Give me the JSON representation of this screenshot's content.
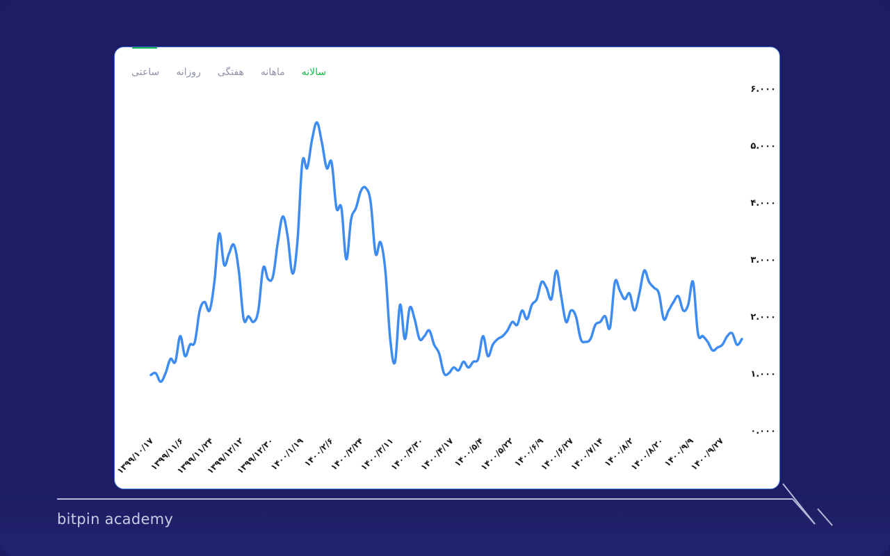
{
  "branding": {
    "name": "bitpin academy"
  },
  "tabs": [
    {
      "label": "سالانه",
      "active": true
    },
    {
      "label": "ماهانه",
      "active": false
    },
    {
      "label": "هفتگی",
      "active": false
    },
    {
      "label": "روزانه",
      "active": false
    },
    {
      "label": "ساعتی",
      "active": false
    }
  ],
  "colors": {
    "line": "#3f8cf0",
    "accent": "#16b94a",
    "background": "#1b1c63"
  },
  "chart_data": {
    "type": "line",
    "title": "",
    "xlabel": "",
    "ylabel": "",
    "ylim": [
      0,
      6
    ],
    "y_ticks": [
      {
        "value": 0,
        "label": "۰.۰۰۰"
      },
      {
        "value": 1,
        "label": "۱.۰۰۰"
      },
      {
        "value": 2,
        "label": "۲.۰۰۰"
      },
      {
        "value": 3,
        "label": "۳.۰۰۰"
      },
      {
        "value": 4,
        "label": "۴.۰۰۰"
      },
      {
        "value": 5,
        "label": "۵.۰۰۰"
      },
      {
        "value": 6,
        "label": "۶.۰۰۰"
      }
    ],
    "x_ticks": [
      "۱۳۹۹/۱۰/۱۷",
      "۱۳۹۹/۱۱/۶",
      "۱۳۹۹/۱۱/۲۴",
      "۱۳۹۹/۱۲/۱۲",
      "۱۳۹۹/۱۲/۳۰",
      "۱۴۰۰/۱/۱۹",
      "۱۴۰۰/۲/۶",
      "۱۴۰۰/۲/۲۴",
      "۱۴۰۰/۳/۱۱",
      "۱۴۰۰/۳/۳۰",
      "۱۴۰۰/۴/۱۷",
      "۱۴۰۰/۵/۴",
      "۱۴۰۰/۵/۲۲",
      "۱۴۰۰/۶/۹",
      "۱۴۰۰/۶/۲۷",
      "۱۴۰۰/۷/۱۴",
      "۱۴۰۰/۸/۲",
      "۱۴۰۰/۸/۲۰",
      "۱۴۰۰/۹/۹",
      "۱۴۰۰/۹/۲۷"
    ],
    "series": [
      {
        "values": [
          0.97,
          1.0,
          0.85,
          1.0,
          1.25,
          1.2,
          1.65,
          1.3,
          1.5,
          1.55,
          2.1,
          2.25,
          2.1,
          2.6,
          3.45,
          2.9,
          3.1,
          3.25,
          2.8,
          1.95,
          2.0,
          1.9,
          2.1,
          2.85,
          2.65,
          2.7,
          3.3,
          3.75,
          3.4,
          2.75,
          3.3,
          4.7,
          4.6,
          5.1,
          5.4,
          5.05,
          4.6,
          4.7,
          3.9,
          3.9,
          3.0,
          3.7,
          3.9,
          4.2,
          4.25,
          4.0,
          3.1,
          3.3,
          2.8,
          1.6,
          1.2,
          2.2,
          1.6,
          2.15,
          1.95,
          1.6,
          1.65,
          1.75,
          1.5,
          1.35,
          1.0,
          1.0,
          1.1,
          1.05,
          1.2,
          1.1,
          1.2,
          1.25,
          1.65,
          1.3,
          1.5,
          1.6,
          1.65,
          1.75,
          1.9,
          1.85,
          2.1,
          1.95,
          2.2,
          2.3,
          2.6,
          2.5,
          2.3,
          2.8,
          2.35,
          1.9,
          2.1,
          2.0,
          1.6,
          1.55,
          1.6,
          1.85,
          1.9,
          2.0,
          1.8,
          2.6,
          2.45,
          2.3,
          2.4,
          2.1,
          2.4,
          2.8,
          2.6,
          2.5,
          2.4,
          1.95,
          2.1,
          2.25,
          2.35,
          2.1,
          2.2,
          2.6,
          1.7,
          1.65,
          1.55,
          1.4,
          1.45,
          1.5,
          1.65,
          1.7,
          1.5,
          1.6
        ]
      }
    ],
    "grid": false,
    "legend": "none"
  }
}
